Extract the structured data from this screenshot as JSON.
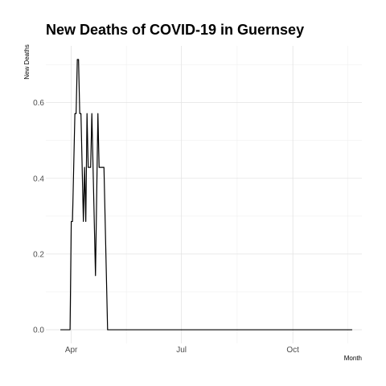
{
  "chart_data": {
    "type": "line",
    "title": "New Deaths of COVID-19 in Guernsey",
    "xlabel": "Month",
    "ylabel": "New Deaths",
    "xlim": [
      "2020-03-11",
      "2020-11-27"
    ],
    "ylim": [
      -0.036,
      0.75
    ],
    "x_ticks": [
      {
        "label": "Apr",
        "date": "2020-04-01"
      },
      {
        "label": "Jul",
        "date": "2020-07-01"
      },
      {
        "label": "Oct",
        "date": "2020-10-01"
      }
    ],
    "y_ticks": [
      {
        "label": "0.0",
        "value": 0.0
      },
      {
        "label": "0.2",
        "value": 0.2
      },
      {
        "label": "0.4",
        "value": 0.4
      },
      {
        "label": "0.6",
        "value": 0.6
      }
    ],
    "grid": true,
    "legend": "none",
    "series": [
      {
        "points": [
          [
            "2020-03-23",
            0.0
          ],
          [
            "2020-03-31",
            0.0
          ],
          [
            "2020-04-01",
            0.286
          ],
          [
            "2020-04-02",
            0.286
          ],
          [
            "2020-04-04",
            0.571
          ],
          [
            "2020-04-05",
            0.571
          ],
          [
            "2020-04-06",
            0.714
          ],
          [
            "2020-04-07",
            0.714
          ],
          [
            "2020-04-08",
            0.571
          ],
          [
            "2020-04-09",
            0.571
          ],
          [
            "2020-04-11",
            0.286
          ],
          [
            "2020-04-12",
            0.429
          ],
          [
            "2020-04-13",
            0.286
          ],
          [
            "2020-04-14",
            0.571
          ],
          [
            "2020-04-15",
            0.429
          ],
          [
            "2020-04-16",
            0.429
          ],
          [
            "2020-04-17",
            0.429
          ],
          [
            "2020-04-18",
            0.571
          ],
          [
            "2020-04-19",
            0.429
          ],
          [
            "2020-04-21",
            0.143
          ],
          [
            "2020-04-23",
            0.571
          ],
          [
            "2020-04-24",
            0.429
          ],
          [
            "2020-04-26",
            0.429
          ],
          [
            "2020-04-28",
            0.429
          ],
          [
            "2020-05-01",
            0.0
          ],
          [
            "2020-11-19",
            0.0
          ]
        ]
      }
    ]
  }
}
